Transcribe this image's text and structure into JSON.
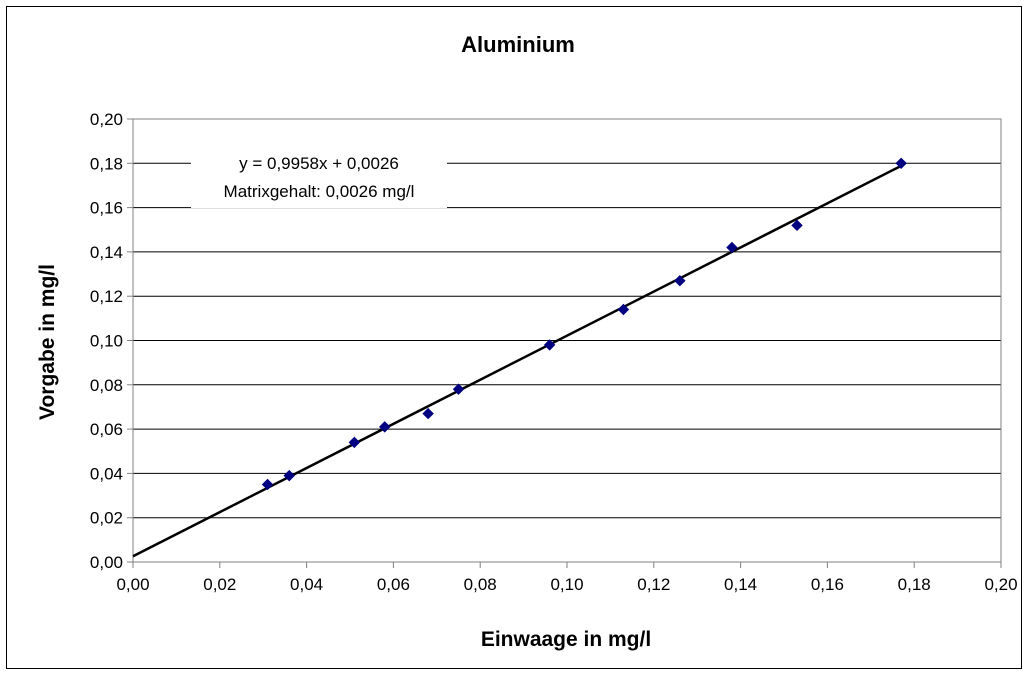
{
  "chart_data": {
    "type": "scatter",
    "title": "Aluminium",
    "xlabel": "Einwaage in mg/l",
    "ylabel": "Vorgabe in mg/l",
    "xlim": [
      0,
      0.2
    ],
    "ylim": [
      0,
      0.2
    ],
    "x_ticks": [
      "0,00",
      "0,02",
      "0,04",
      "0,06",
      "0,08",
      "0,10",
      "0,12",
      "0,14",
      "0,16",
      "0,18",
      "0,20"
    ],
    "y_ticks": [
      "0,00",
      "0,02",
      "0,04",
      "0,06",
      "0,08",
      "0,10",
      "0,12",
      "0,14",
      "0,16",
      "0,18",
      "0,20"
    ],
    "grid": "horizontal",
    "legend": "none",
    "series": [
      {
        "marker": "diamond",
        "color": "#000080",
        "points": [
          {
            "x": 0.031,
            "y": 0.035
          },
          {
            "x": 0.036,
            "y": 0.039
          },
          {
            "x": 0.051,
            "y": 0.054
          },
          {
            "x": 0.058,
            "y": 0.061
          },
          {
            "x": 0.068,
            "y": 0.067
          },
          {
            "x": 0.075,
            "y": 0.078
          },
          {
            "x": 0.096,
            "y": 0.098
          },
          {
            "x": 0.113,
            "y": 0.114
          },
          {
            "x": 0.126,
            "y": 0.127
          },
          {
            "x": 0.138,
            "y": 0.142
          },
          {
            "x": 0.153,
            "y": 0.152
          },
          {
            "x": 0.177,
            "y": 0.18
          }
        ]
      }
    ],
    "trendline": {
      "slope": 0.9958,
      "intercept": 0.0026,
      "x_range": [
        0,
        0.177
      ],
      "color": "#000000"
    },
    "annotation": {
      "equation": "y = 0,9958x + 0,0026",
      "matrix": "Matrixgehalt: 0,0026 mg/l"
    }
  }
}
